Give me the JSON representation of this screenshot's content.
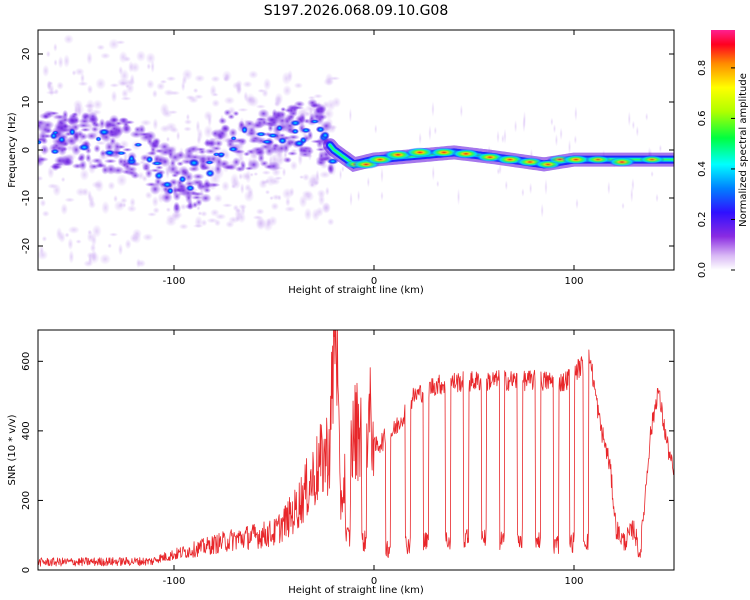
{
  "title": "S197.2026.068.09.10.G08",
  "colors": {
    "snr_line": "#e8262a",
    "axis": "#000000",
    "background": "#ffffff"
  },
  "chart_data": [
    {
      "type": "heatmap",
      "xlabel": "Height of straight line (km)",
      "ylabel": "Frequency (Hz)",
      "xlim": [
        -168,
        150
      ],
      "ylim": [
        -25,
        25
      ],
      "xticks": [
        {
          "value": -100,
          "label": "-100"
        },
        {
          "value": 0,
          "label": "0"
        },
        {
          "value": 100,
          "label": "100"
        }
      ],
      "yticks": [
        {
          "value": -20,
          "label": "-20"
        },
        {
          "value": -10,
          "label": "-10"
        },
        {
          "value": 0,
          "label": "0"
        },
        {
          "value": 10,
          "label": "10"
        },
        {
          "value": 20,
          "label": "20"
        }
      ],
      "colorbar": {
        "label": "Normalized spectral amplitude",
        "range": [
          0,
          0.95
        ],
        "ticks": [
          {
            "value": 0.0,
            "label": "0.0"
          },
          {
            "value": 0.2,
            "label": "0.2"
          },
          {
            "value": 0.4,
            "label": "0.4"
          },
          {
            "value": 0.6,
            "label": "0.6"
          },
          {
            "value": 0.8,
            "label": "0.8"
          }
        ]
      },
      "ridge": [
        {
          "x": -168,
          "f": 3
        },
        {
          "x": -140,
          "f": 1
        },
        {
          "x": -115,
          "f": 0
        },
        {
          "x": -100,
          "f": -7
        },
        {
          "x": -85,
          "f": -5
        },
        {
          "x": -75,
          "f": 2
        },
        {
          "x": -60,
          "f": 1
        },
        {
          "x": -45,
          "f": 3
        },
        {
          "x": -30,
          "f": 5
        },
        {
          "x": -20,
          "f": 0
        },
        {
          "x": -10,
          "f": -3
        },
        {
          "x": 0,
          "f": -2
        },
        {
          "x": 40,
          "f": -0.5
        },
        {
          "x": 60,
          "f": -1.5
        },
        {
          "x": 85,
          "f": -3
        },
        {
          "x": 100,
          "f": -2
        },
        {
          "x": 150,
          "f": -2
        }
      ],
      "blobs": [
        {
          "x": -9,
          "f": -3,
          "a": 0.55
        },
        {
          "x": -4,
          "f": -3,
          "a": 0.8
        },
        {
          "x": 3,
          "f": -2,
          "a": 0.85
        },
        {
          "x": 12,
          "f": -1,
          "a": 0.9
        },
        {
          "x": 23,
          "f": -0.5,
          "a": 0.95
        },
        {
          "x": 35,
          "f": -0.5,
          "a": 0.9
        },
        {
          "x": 46,
          "f": -0.8,
          "a": 0.9
        },
        {
          "x": 58,
          "f": -1.5,
          "a": 0.85
        },
        {
          "x": 68,
          "f": -2,
          "a": 0.85
        },
        {
          "x": 78,
          "f": -2.5,
          "a": 0.8
        },
        {
          "x": 87,
          "f": -3,
          "a": 0.75
        },
        {
          "x": 93,
          "f": -2,
          "a": 0.6
        },
        {
          "x": 101,
          "f": -2,
          "a": 0.85
        },
        {
          "x": 112,
          "f": -2,
          "a": 0.6
        },
        {
          "x": 124,
          "f": -2.5,
          "a": 0.8
        },
        {
          "x": 139,
          "f": -2,
          "a": 0.6
        }
      ]
    },
    {
      "type": "line",
      "xlabel": "Height of straight line (km)",
      "ylabel": "SNR (10 * v/v)",
      "xlim": [
        -168,
        150
      ],
      "ylim": [
        0,
        690
      ],
      "xticks": [
        {
          "value": -100,
          "label": "-100"
        },
        {
          "value": 0,
          "label": "0"
        },
        {
          "value": 100,
          "label": "100"
        }
      ],
      "yticks": [
        {
          "value": 0,
          "label": "0"
        },
        {
          "value": 200,
          "label": "200"
        },
        {
          "value": 400,
          "label": "400"
        },
        {
          "value": 600,
          "label": "600"
        }
      ],
      "series": [
        {
          "name": "SNR",
          "envelope": [
            {
              "x": -168,
              "y": 20
            },
            {
              "x": -110,
              "y": 25
            },
            {
              "x": -90,
              "y": 50
            },
            {
              "x": -70,
              "y": 75
            },
            {
              "x": -50,
              "y": 90
            },
            {
              "x": -40,
              "y": 140
            },
            {
              "x": -30,
              "y": 230
            },
            {
              "x": -22,
              "y": 300
            },
            {
              "x": -19,
              "y": 680
            },
            {
              "x": -17,
              "y": 160
            },
            {
              "x": -10,
              "y": 330
            },
            {
              "x": -5,
              "y": 380
            },
            {
              "x": 0,
              "y": 350
            },
            {
              "x": 10,
              "y": 400
            },
            {
              "x": 20,
              "y": 500
            },
            {
              "x": 30,
              "y": 530
            },
            {
              "x": 40,
              "y": 540
            },
            {
              "x": 60,
              "y": 545
            },
            {
              "x": 80,
              "y": 545
            },
            {
              "x": 95,
              "y": 540
            },
            {
              "x": 108,
              "y": 610
            },
            {
              "x": 113,
              "y": 420
            },
            {
              "x": 118,
              "y": 300
            },
            {
              "x": 121,
              "y": 120
            },
            {
              "x": 125,
              "y": 80
            },
            {
              "x": 130,
              "y": 120
            },
            {
              "x": 133,
              "y": 40
            },
            {
              "x": 138,
              "y": 380
            },
            {
              "x": 142,
              "y": 520
            },
            {
              "x": 146,
              "y": 380
            },
            {
              "x": 150,
              "y": 270
            }
          ],
          "dips": [
            {
              "x": -13,
              "y": 80
            },
            {
              "x": -5,
              "y": 70
            },
            {
              "x": 7,
              "y": 65
            },
            {
              "x": 17,
              "y": 75
            },
            {
              "x": 26,
              "y": 80
            },
            {
              "x": 37,
              "y": 85
            },
            {
              "x": 46,
              "y": 90
            },
            {
              "x": 55,
              "y": 95
            },
            {
              "x": 64,
              "y": 85
            },
            {
              "x": 73,
              "y": 90
            },
            {
              "x": 82,
              "y": 90
            },
            {
              "x": 91,
              "y": 75
            },
            {
              "x": 99,
              "y": 80
            },
            {
              "x": 106,
              "y": 85
            }
          ]
        }
      ]
    }
  ]
}
